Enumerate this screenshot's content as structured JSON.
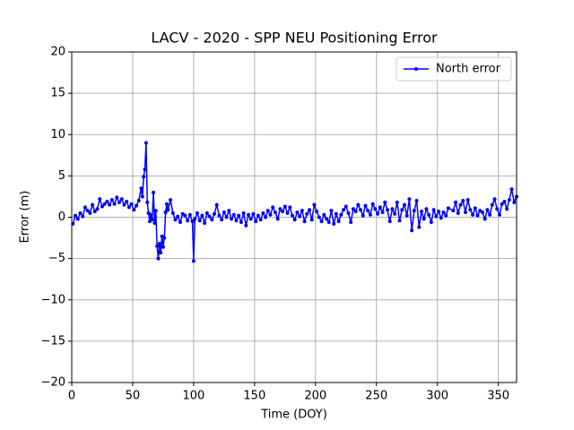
{
  "chart_data": {
    "type": "line",
    "title": "LACV - 2020 - SPP NEU Positioning Error",
    "x_label": "Time (DOY)",
    "y_label": "Error (m)",
    "xlim": [
      0,
      365
    ],
    "ylim": [
      -20,
      20
    ],
    "xticks": [
      0,
      50,
      100,
      150,
      200,
      250,
      300,
      350
    ],
    "yticks": [
      {
        "value": -20,
        "label": "−20"
      },
      {
        "value": -15,
        "label": "−15"
      },
      {
        "value": -10,
        "label": "−10"
      },
      {
        "value": -5,
        "label": "−5"
      },
      0,
      5,
      10,
      15,
      20
    ],
    "grid": true,
    "legend": "upper right",
    "x": [
      1,
      3,
      5,
      7,
      9,
      11,
      13,
      15,
      17,
      19,
      21,
      23,
      25,
      27,
      29,
      31,
      33,
      35,
      37,
      39,
      41,
      43,
      45,
      47,
      49,
      51,
      53,
      55,
      57,
      58,
      59,
      60,
      61,
      62,
      63,
      64,
      65,
      66,
      67,
      68,
      69,
      70,
      71,
      72,
      73,
      74,
      75,
      76,
      77,
      78,
      79,
      81,
      83,
      85,
      87,
      89,
      91,
      93,
      95,
      97,
      99,
      100,
      101,
      103,
      105,
      107,
      109,
      111,
      113,
      115,
      117,
      119,
      121,
      123,
      125,
      127,
      129,
      131,
      133,
      135,
      137,
      139,
      141,
      143,
      145,
      147,
      149,
      151,
      153,
      155,
      157,
      159,
      161,
      163,
      165,
      167,
      169,
      171,
      173,
      175,
      177,
      179,
      181,
      183,
      185,
      187,
      189,
      191,
      193,
      195,
      197,
      199,
      201,
      203,
      205,
      207,
      209,
      211,
      213,
      215,
      217,
      219,
      221,
      223,
      225,
      227,
      229,
      231,
      233,
      235,
      237,
      239,
      241,
      243,
      245,
      247,
      249,
      251,
      253,
      255,
      257,
      259,
      261,
      263,
      265,
      267,
      269,
      271,
      273,
      275,
      277,
      279,
      281,
      283,
      285,
      287,
      289,
      291,
      293,
      295,
      297,
      299,
      301,
      303,
      305,
      307,
      309,
      313,
      315,
      317,
      319,
      321,
      323,
      325,
      327,
      329,
      331,
      333,
      335,
      337,
      339,
      341,
      343,
      345,
      347,
      349,
      351,
      353,
      355,
      357,
      359,
      361,
      363,
      365
    ],
    "series": [
      {
        "name": "North error",
        "color": "#0000ff",
        "values": [
          -0.8,
          0.2,
          -0.2,
          0.5,
          0.1,
          1.2,
          0.8,
          0.5,
          1.5,
          0.7,
          1.0,
          2.2,
          1.3,
          1.6,
          1.9,
          1.5,
          2.1,
          1.6,
          2.4,
          1.8,
          2.2,
          1.5,
          1.9,
          1.2,
          1.6,
          0.9,
          1.4,
          2.0,
          3.5,
          2.5,
          4.9,
          5.8,
          9.0,
          1.8,
          0.5,
          -0.5,
          0.3,
          -0.3,
          3.0,
          -0.7,
          0.8,
          -3.5,
          -5.0,
          -3.2,
          -4.3,
          -2.3,
          -3.6,
          -2.5,
          0.6,
          1.6,
          0.9,
          2.1,
          0.5,
          -0.3,
          0.1,
          -0.6,
          0.4,
          0.2,
          -0.4,
          0.3,
          -0.5,
          -5.3,
          -0.2,
          0.5,
          -0.4,
          0.2,
          -0.7,
          0.5,
          0.1,
          -0.3,
          0.4,
          1.5,
          0.2,
          -0.3,
          0.6,
          0.0,
          0.8,
          -0.2,
          0.3,
          -0.4,
          0.2,
          -0.6,
          0.5,
          -1.0,
          0.3,
          -0.2,
          0.4,
          -0.5,
          0.2,
          -0.3,
          0.5,
          0.0,
          0.8,
          0.3,
          1.2,
          0.6,
          -0.2,
          1.0,
          0.7,
          1.3,
          0.5,
          1.2,
          0.2,
          -0.3,
          0.6,
          0.1,
          0.8,
          -0.5,
          0.4,
          0.9,
          -0.3,
          1.5,
          0.7,
          0.0,
          -0.5,
          0.3,
          -0.2,
          -0.6,
          0.8,
          -0.8,
          0.4,
          -0.5,
          0.3,
          0.9,
          1.3,
          0.5,
          -0.6,
          1.0,
          0.7,
          1.5,
          0.9,
          0.2,
          1.4,
          0.8,
          0.3,
          1.6,
          1.0,
          0.4,
          1.2,
          0.6,
          1.8,
          0.9,
          -0.5,
          1.0,
          0.4,
          1.8,
          -0.4,
          0.9,
          1.5,
          0.2,
          2.2,
          -1.6,
          0.8,
          2.0,
          -1.2,
          0.7,
          -0.2,
          1.0,
          0.3,
          -0.6,
          0.9,
          0.1,
          0.7,
          -0.1,
          0.6,
          0.2,
          1.1,
          0.8,
          1.8,
          0.5,
          1.5,
          2.0,
          0.6,
          2.1,
          0.9,
          0.3,
          1.1,
          0.2,
          0.8,
          0.6,
          -0.2,
          0.9,
          0.3,
          1.5,
          2.2,
          1.0,
          0.3,
          1.6,
          1.9,
          1.0,
          2.1,
          3.4,
          1.8,
          2.5
        ]
      }
    ]
  }
}
